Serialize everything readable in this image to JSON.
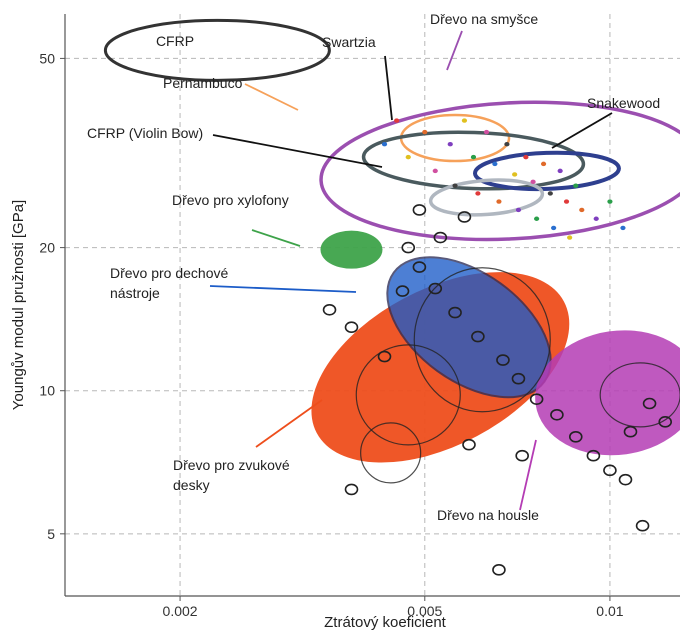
{
  "chart_data": {
    "type": "scatter",
    "title": "",
    "xlabel": "Ztrátový koeficient",
    "ylabel": "Youngův modul pružnosti [GPa]",
    "x_scale": "log",
    "y_scale": "log",
    "xlim": [
      0.0013,
      0.013
    ],
    "ylim": [
      3.7,
      62
    ],
    "x_ticks": [
      {
        "value": 0.002,
        "label": "0.002"
      },
      {
        "value": 0.005,
        "label": "0.005"
      },
      {
        "value": 0.01,
        "label": "0.01"
      }
    ],
    "y_ticks": [
      {
        "value": 5,
        "label": "5"
      },
      {
        "value": 10,
        "label": "10"
      },
      {
        "value": 20,
        "label": "20"
      },
      {
        "value": 50,
        "label": "50"
      }
    ],
    "grid": "dashed",
    "regions": [
      {
        "label": "CFRP",
        "x": 0.0023,
        "y": 52,
        "color": "#333333"
      },
      {
        "label": "Dřevo na smyšce",
        "x": 0.0069,
        "y": 29,
        "color": "#9b4fb0"
      },
      {
        "label": "Pernambuco",
        "x": 0.0056,
        "y": 34,
        "color": "#f6a15a"
      },
      {
        "label": "Swartzia",
        "x": 0.006,
        "y": 30.5,
        "color": "#4a5a5e"
      },
      {
        "label": "Snakewood",
        "x": 0.0079,
        "y": 29,
        "color": "#2e3f8f"
      },
      {
        "label": "CFRP (Violin Bow)",
        "x": 0.0063,
        "y": 25.5,
        "color": "#b0b7c0"
      },
      {
        "label": "Dřevo pro xylofony",
        "x": 0.0038,
        "y": 19.8,
        "color": "#3ea34a"
      },
      {
        "label": "Dřevo pro zvukové desky",
        "x": 0.0053,
        "y": 11.2,
        "color": "#ee4e1c"
      },
      {
        "label": "Dřevo pro dechové nástroje",
        "x": 0.0059,
        "y": 13.6,
        "color": "#1c5cc8"
      },
      {
        "label": "Dřevo na housle",
        "x": 0.0103,
        "y": 9.9,
        "color": "#b43cb4"
      }
    ],
    "series": [
      {
        "values": [
          [
            0.0038,
            6.2
          ],
          [
            0.0043,
            11.8
          ],
          [
            0.0047,
            20.0
          ],
          [
            0.0049,
            18.2
          ],
          [
            0.0052,
            16.4
          ],
          [
            0.0056,
            14.6
          ],
          [
            0.0061,
            13.0
          ],
          [
            0.0067,
            11.6
          ],
          [
            0.0071,
            10.6
          ],
          [
            0.0076,
            9.6
          ],
          [
            0.0082,
            8.9
          ],
          [
            0.0088,
            8.0
          ],
          [
            0.0094,
            7.3
          ],
          [
            0.01,
            6.8
          ],
          [
            0.0108,
            8.2
          ],
          [
            0.0116,
            9.4
          ],
          [
            0.0123,
            8.6
          ],
          [
            0.0066,
            4.2
          ],
          [
            0.0059,
            7.7
          ],
          [
            0.0072,
            7.3
          ],
          [
            0.0113,
            5.2
          ],
          [
            0.0106,
            6.5
          ],
          [
            0.0035,
            14.8
          ],
          [
            0.0038,
            13.6
          ],
          [
            0.0046,
            16.2
          ],
          [
            0.0049,
            24.0
          ],
          [
            0.0058,
            23.2
          ],
          [
            0.0053,
            21.0
          ]
        ]
      },
      {
        "values": [
          [
            0.0045,
            37
          ],
          [
            0.005,
            35
          ],
          [
            0.0055,
            33
          ],
          [
            0.006,
            31
          ],
          [
            0.0065,
            30
          ],
          [
            0.007,
            28.5
          ],
          [
            0.0075,
            27.5
          ],
          [
            0.008,
            26
          ],
          [
            0.0085,
            25
          ],
          [
            0.009,
            24
          ],
          [
            0.0095,
            23
          ],
          [
            0.01,
            25
          ],
          [
            0.0105,
            22
          ],
          [
            0.0058,
            37
          ],
          [
            0.0063,
            35
          ],
          [
            0.0068,
            33
          ],
          [
            0.0073,
            31
          ],
          [
            0.0078,
            30
          ],
          [
            0.0083,
            29
          ],
          [
            0.0088,
            27
          ],
          [
            0.0043,
            33
          ],
          [
            0.0047,
            31
          ],
          [
            0.0052,
            29
          ],
          [
            0.0056,
            27
          ],
          [
            0.0061,
            26
          ],
          [
            0.0066,
            25
          ],
          [
            0.0071,
            24
          ],
          [
            0.0076,
            23
          ],
          [
            0.0081,
            22
          ],
          [
            0.0086,
            21
          ]
        ]
      }
    ]
  }
}
